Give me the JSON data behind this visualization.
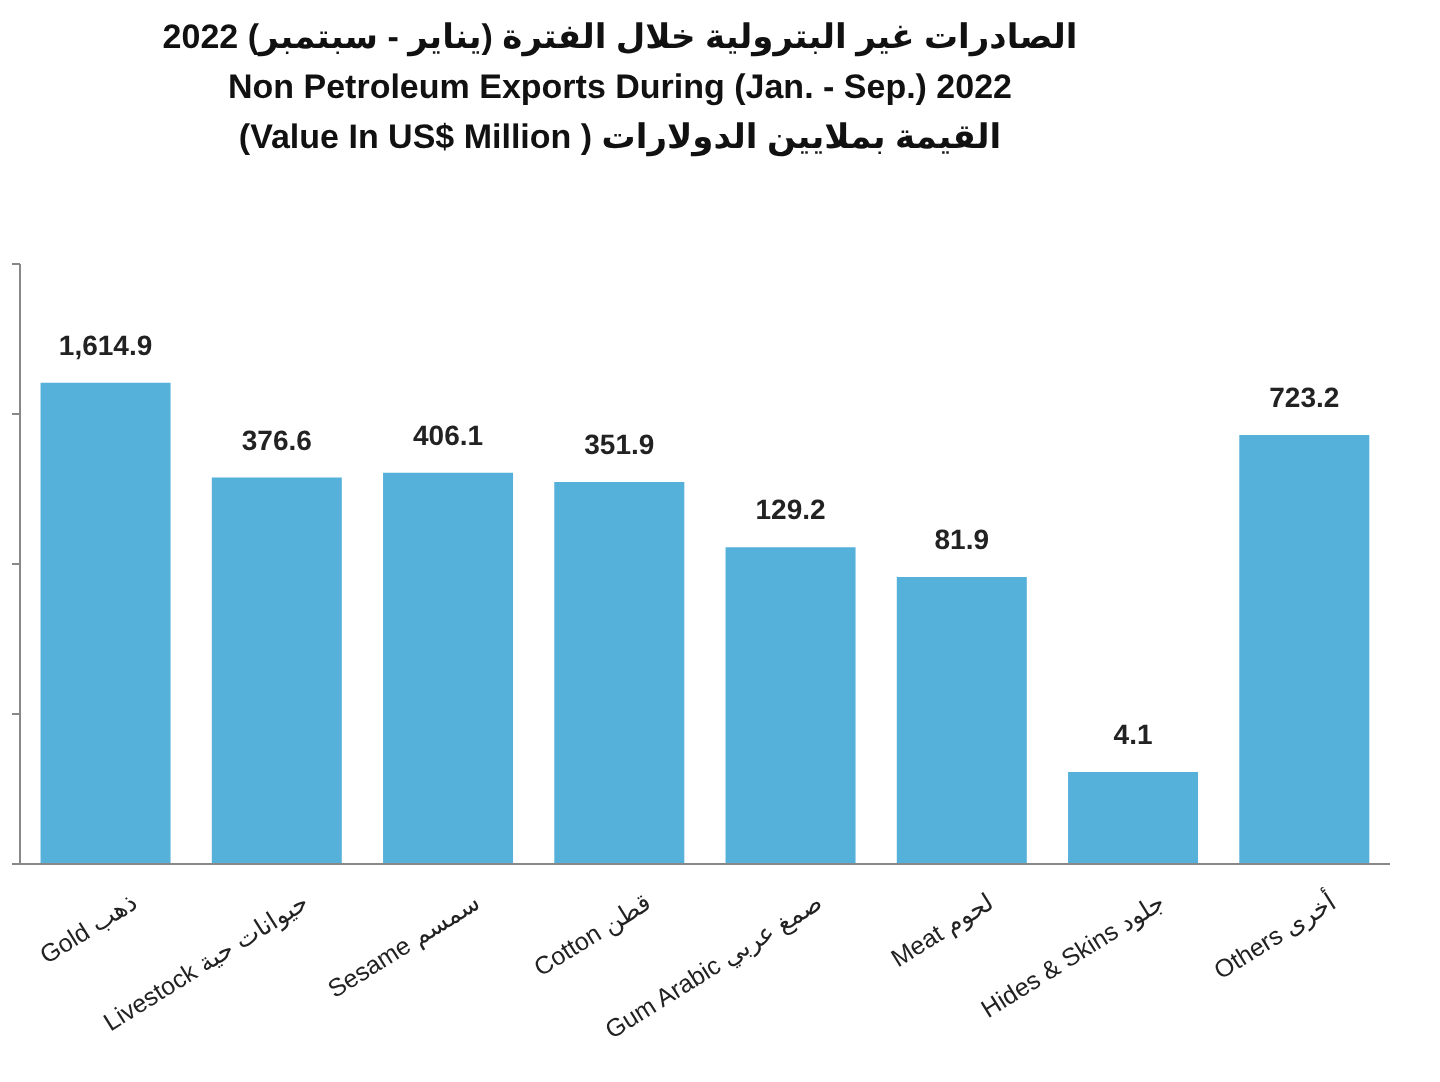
{
  "chart_data": {
    "type": "bar",
    "title": "الصادرات غير البترولية خلال الفترة (يناير - سبتمبر) 2022\nNon Petroleum Exports During (Jan. - Sep.) 2022",
    "subtitle": "القيمة بملايين الدولارات ( Value In US$ Million)",
    "categories": [
      "Gold ذهب",
      "Livestock حيوانات حية",
      "Sesame سمسم",
      "Cotton قطن",
      "Gum Arabic صمغ عربي",
      "Meat لحوم",
      "Hides & Skins جلود",
      "Others أخرى"
    ],
    "values": [
      1614.9,
      376.6,
      406.1,
      351.9,
      129.2,
      81.9,
      4.1,
      723.2
    ],
    "value_labels": [
      "1,614.9",
      "376.6",
      "406.1",
      "351.9",
      "129.2",
      "81.9",
      "4.1",
      "723.2"
    ],
    "color": "#55b0da",
    "log": true,
    "ylim": [
      1,
      10000
    ],
    "yticks": [
      {
        "value": 1,
        "label": null
      },
      {
        "value": 10,
        "label": null
      },
      {
        "value": 100,
        "label": null
      },
      {
        "value": 1000,
        "label": null
      },
      {
        "value": 10000,
        "label": null
      }
    ],
    "tick_labels": "x",
    "legend": false
  }
}
